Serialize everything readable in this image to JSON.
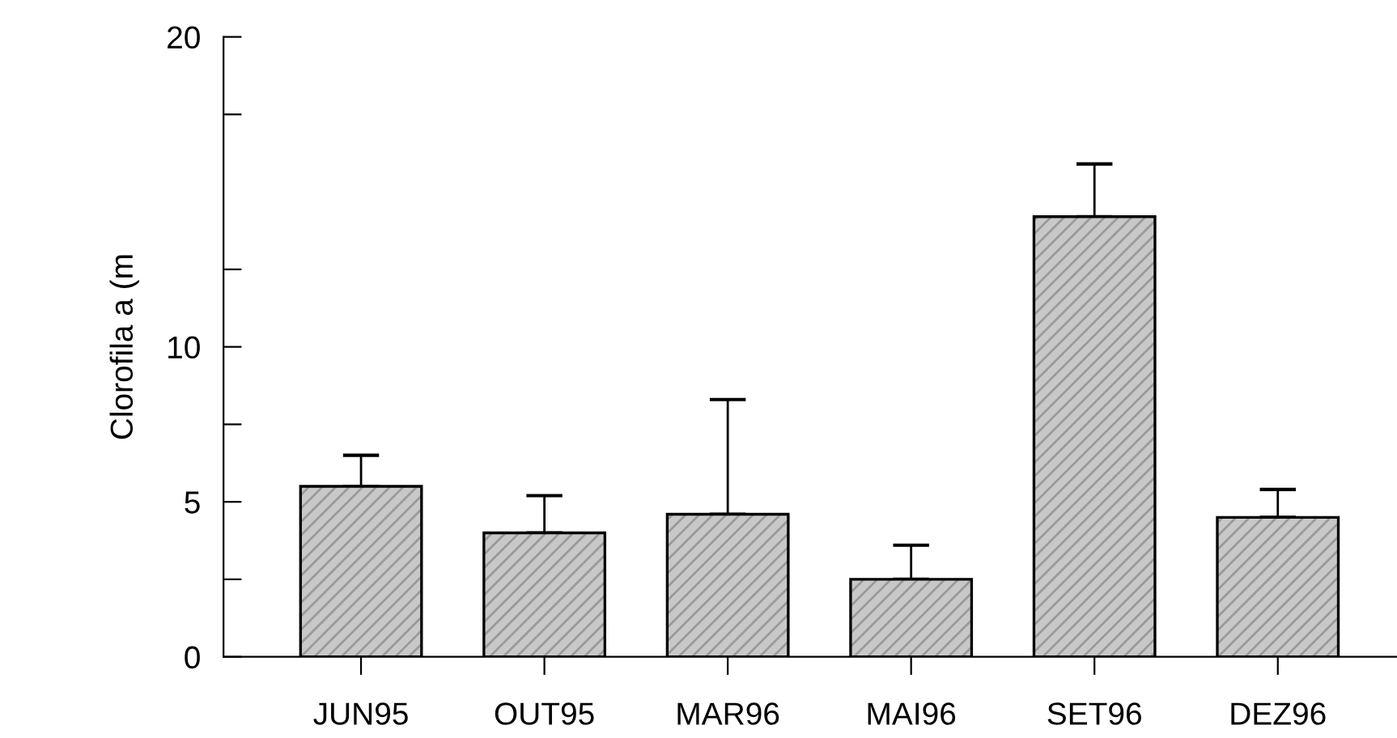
{
  "chart_data": {
    "type": "bar",
    "ylabel": "Clorofila a (m",
    "categories": [
      "JUN95",
      "OUT95",
      "MAR96",
      "MAI96",
      "SET96",
      "DEZ96"
    ],
    "values": [
      5.5,
      4.0,
      4.6,
      2.5,
      14.2,
      4.5
    ],
    "errors": [
      [
        5.5,
        6.5
      ],
      [
        4.0,
        5.2
      ],
      [
        4.6,
        8.3
      ],
      [
        2.5,
        3.6
      ],
      [
        14.2,
        15.9
      ],
      [
        4.5,
        5.4
      ]
    ],
    "color": "#c8c8c8",
    "ylim": [
      0,
      20
    ],
    "yticks": [
      0,
      {
        "value": 2.5,
        "label": null
      },
      5,
      {
        "value": 7.5,
        "label": null
      },
      10,
      {
        "value": 12.5,
        "label": null
      },
      {
        "value": 17.5,
        "label": null
      },
      20
    ],
    "grid": false
  }
}
